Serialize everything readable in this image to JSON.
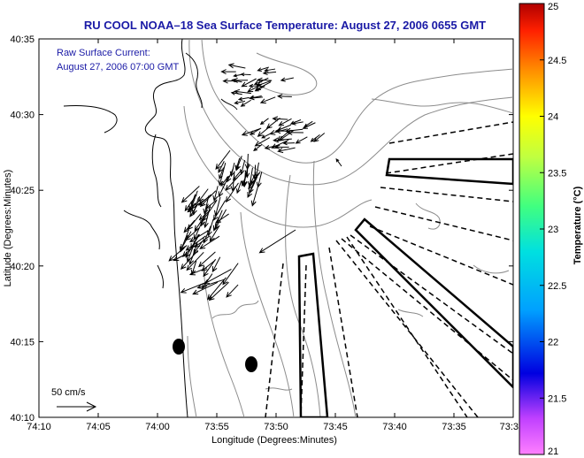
{
  "title": "RU COOL  NOAA–18  Sea Surface Temperature:  August 27, 2006 0655 GMT",
  "current_note": {
    "line1": "Raw Surface Current:",
    "line2": "August 27, 2006 07:00 GMT"
  },
  "scale_label": "50 cm/s",
  "axes": {
    "xlabel": "Longitude (Degrees:Minutes)",
    "ylabel": "Latitude (Degrees:Minutes)",
    "xticks": [
      "74:10",
      "74:05",
      "74:00",
      "73:55",
      "73:50",
      "73:45",
      "73:40",
      "73:35",
      "73:3"
    ],
    "yticks": [
      "40:35",
      "40:30",
      "40:25",
      "40:20",
      "40:15",
      "40:10"
    ]
  },
  "colorbar": {
    "label": "Temperature (°C)",
    "ticks": [
      "25",
      "24.5",
      "24",
      "23.5",
      "23",
      "22.5",
      "22",
      "21.5",
      "21"
    ]
  },
  "colors": {
    "title": "#1a1aa6",
    "coast": "#000000",
    "bathymetry": "#8c8c8c"
  }
}
